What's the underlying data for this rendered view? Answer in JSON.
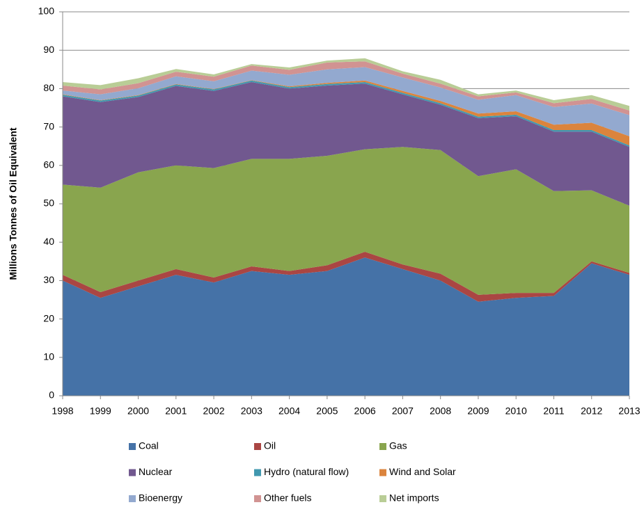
{
  "chart_data": {
    "type": "stacked-area",
    "y_label": "Millions Tonnes of Oil Equivalent",
    "categories": [
      "1998",
      "1999",
      "2000",
      "2001",
      "2002",
      "2003",
      "2004",
      "2005",
      "2006",
      "2007",
      "2008",
      "2009",
      "2010",
      "2011",
      "2012",
      "2013"
    ],
    "ylim": [
      0,
      100
    ],
    "yticks": [
      0,
      10,
      20,
      30,
      40,
      50,
      60,
      70,
      80,
      90,
      100
    ],
    "grid": true,
    "series": [
      {
        "name": "Coal",
        "color": "#4572a7",
        "values": [
          30,
          25.5,
          28.5,
          31.5,
          29.5,
          32.5,
          31.5,
          32.5,
          36,
          33,
          30,
          24.5,
          25.5,
          26,
          34.5,
          31.5
        ]
      },
      {
        "name": "Oil",
        "color": "#aa4643",
        "values": [
          1.5,
          1.5,
          1.5,
          1.5,
          1.3,
          1.2,
          1,
          1.5,
          1.5,
          1.2,
          1.8,
          1.8,
          1.3,
          0.8,
          0.5,
          0.5
        ]
      },
      {
        "name": "Gas",
        "color": "#89a54e",
        "values": [
          23.5,
          27.2,
          28.2,
          27,
          28.5,
          28,
          29.2,
          28.5,
          26.7,
          30.6,
          32.2,
          30.9,
          32.2,
          26.5,
          18.5,
          17.5
        ]
      },
      {
        "name": "Nuclear",
        "color": "#71588f",
        "values": [
          23,
          22.3,
          19.6,
          20.7,
          20.1,
          20,
          18.3,
          18.3,
          17.1,
          13.7,
          11.8,
          15.1,
          13.8,
          15.5,
          15.3,
          15.3
        ]
      },
      {
        "name": "Hydro (natural flow)",
        "color": "#4198af",
        "values": [
          0.4,
          0.4,
          0.4,
          0.4,
          0.4,
          0.4,
          0.4,
          0.4,
          0.4,
          0.4,
          0.4,
          0.4,
          0.4,
          0.4,
          0.4,
          0.4
        ]
      },
      {
        "name": "Wind and Solar",
        "color": "#db843d",
        "values": [
          0.1,
          0.1,
          0.1,
          0.1,
          0.1,
          0.1,
          0.2,
          0.3,
          0.4,
          0.5,
          0.6,
          0.8,
          0.9,
          1.4,
          1.9,
          2.4
        ]
      },
      {
        "name": "Bioenergy",
        "color": "#93a9cf",
        "values": [
          1,
          1.5,
          1.8,
          2,
          2,
          2.5,
          3,
          3.5,
          3.5,
          3.5,
          3.5,
          3.6,
          4.2,
          4.6,
          5,
          5.5
        ]
      },
      {
        "name": "Other fuels",
        "color": "#d19392",
        "values": [
          1.3,
          1.3,
          1.3,
          1.2,
          1.2,
          1.3,
          1.3,
          1.8,
          1.5,
          1,
          1,
          0.9,
          0.7,
          1,
          1.2,
          1.2
        ]
      },
      {
        "name": "Net imports",
        "color": "#b9cd96",
        "values": [
          0.9,
          1.1,
          1.3,
          0.7,
          0.6,
          0.4,
          0.6,
          0.5,
          0.8,
          0.6,
          1,
          0.5,
          0.5,
          0.8,
          1,
          1.2
        ]
      }
    ]
  }
}
